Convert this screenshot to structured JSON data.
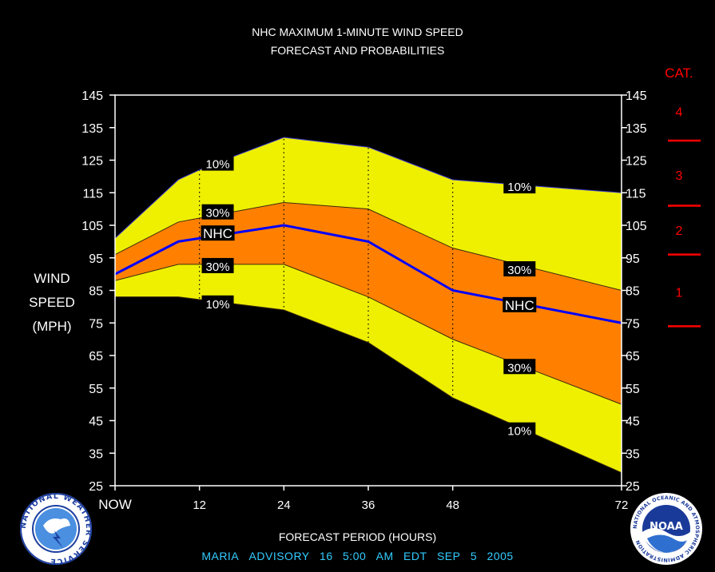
{
  "title": {
    "line1": "NHC MAXIMUM 1-MINUTE WIND SPEED",
    "line2": "FORECAST AND PROBABILITIES"
  },
  "y_axis_label": [
    "WIND",
    "SPEED",
    "(MPH)"
  ],
  "x_axis_label": "FORECAST PERIOD (HOURS)",
  "advisory": {
    "storm": "MARIA",
    "label": "ADVISORY",
    "number": "16",
    "time": "5:00",
    "ampm": "AM",
    "tz": "EDT",
    "month": "SEP",
    "day": "5",
    "year": "2005"
  },
  "category_scale": {
    "title": "CAT.",
    "categories": [
      {
        "label": "4",
        "mid_mph": 140
      },
      {
        "label": "3",
        "mid_mph": 120.5
      },
      {
        "label": "2",
        "mid_mph": 103.5
      },
      {
        "label": "1",
        "mid_mph": 84.5
      }
    ],
    "boundaries_mph": [
      131,
      111,
      96,
      74
    ],
    "color": "#ff0000"
  },
  "logos": {
    "left": "NATIONAL WEATHER SERVICE",
    "right_text": "NOAA",
    "right_ring": "NATIONAL OCEANIC AND ATMOSPHERIC ADMINISTRATION"
  },
  "colors": {
    "background": "#000000",
    "band_10": "#eef000",
    "band_30": "#ff8000",
    "nhc_line": "#0000ff",
    "text": "#ffffff",
    "advisory_text": "#33ccff",
    "category": "#ff0000"
  },
  "chart_data": {
    "type": "area",
    "xlabel": "FORECAST PERIOD (HOURS)",
    "ylabel": "WIND SPEED (MPH)",
    "xlim": [
      0,
      72
    ],
    "ylim": [
      25,
      145
    ],
    "x_ticks": [
      {
        "value": 0,
        "label": "NOW"
      },
      {
        "value": 12,
        "label": "12"
      },
      {
        "value": 24,
        "label": "24"
      },
      {
        "value": 36,
        "label": "36"
      },
      {
        "value": 48,
        "label": "48"
      },
      {
        "value": 72,
        "label": "72"
      }
    ],
    "y_ticks": [
      25,
      35,
      45,
      55,
      65,
      75,
      85,
      95,
      105,
      115,
      125,
      135,
      145
    ],
    "vertical_grid_dotted_at": [
      12,
      24,
      36,
      48
    ],
    "series": [
      {
        "name": "10%",
        "role": "upper",
        "x": [
          0,
          9,
          13,
          24,
          36,
          48,
          72
        ],
        "values": [
          101,
          119,
          123,
          132,
          129,
          119,
          115
        ]
      },
      {
        "name": "30%",
        "role": "upper",
        "x": [
          0,
          9,
          24,
          36,
          48,
          72
        ],
        "values": [
          96,
          106,
          112,
          110,
          98,
          85
        ]
      },
      {
        "name": "NHC",
        "role": "forecast",
        "x": [
          0,
          9,
          24,
          36,
          48,
          72
        ],
        "values": [
          90,
          100,
          105,
          100,
          85,
          75
        ]
      },
      {
        "name": "30%",
        "role": "lower",
        "x": [
          0,
          9,
          24,
          36,
          48,
          72
        ],
        "values": [
          88,
          93,
          93,
          83,
          70,
          50
        ]
      },
      {
        "name": "10%",
        "role": "lower",
        "x": [
          0,
          9,
          24,
          36,
          48,
          72
        ],
        "values": [
          83,
          83,
          79,
          69,
          52,
          29
        ]
      }
    ],
    "labels": [
      {
        "text": "10%",
        "x": 14.6,
        "y": 124
      },
      {
        "text": "30%",
        "x": 14.6,
        "y": 109
      },
      {
        "text": "NHC",
        "x": 14.6,
        "y": 102.5
      },
      {
        "text": "30%",
        "x": 14.6,
        "y": 92.5
      },
      {
        "text": "10%",
        "x": 14.6,
        "y": 81
      },
      {
        "text": "10%",
        "x": 57.5,
        "y": 117
      },
      {
        "text": "30%",
        "x": 57.5,
        "y": 91.5
      },
      {
        "text": "NHC",
        "x": 57.5,
        "y": 80.5
      },
      {
        "text": "30%",
        "x": 57.5,
        "y": 61.5
      },
      {
        "text": "10%",
        "x": 57.5,
        "y": 42
      }
    ]
  }
}
